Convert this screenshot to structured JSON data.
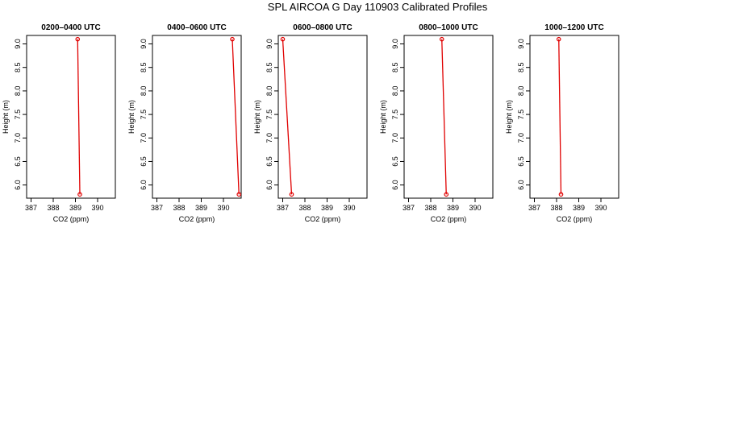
{
  "title": "SPL AIRCOA G  Day 110903  Calibrated Profiles",
  "colors": {
    "profile": "#e00000",
    "axis": "#000000"
  },
  "chart_data": [
    {
      "type": "line",
      "title": "0200–0400 UTC",
      "xlabel": "CO2 (ppm)",
      "ylabel": "Height (m)",
      "xlim": [
        386.8,
        390.8
      ],
      "ylim": [
        5.72,
        9.18
      ],
      "xticks": [
        "387",
        "388",
        "389",
        "390"
      ],
      "yticks": [
        "6.0",
        "6.5",
        "7.0",
        "7.5",
        "8.0",
        "8.5",
        "9.0"
      ],
      "grid": false,
      "series": [
        {
          "x": [
            389.1,
            389.2
          ],
          "y": [
            9.1,
            5.8
          ]
        }
      ]
    },
    {
      "type": "line",
      "title": "0400–0600 UTC",
      "xlabel": "CO2 (ppm)",
      "ylabel": "Height (m)",
      "xlim": [
        386.8,
        390.8
      ],
      "ylim": [
        5.72,
        9.18
      ],
      "xticks": [
        "387",
        "388",
        "389",
        "390"
      ],
      "yticks": [
        "6.0",
        "6.5",
        "7.0",
        "7.5",
        "8.0",
        "8.5",
        "9.0"
      ],
      "grid": false,
      "series": [
        {
          "x": [
            390.4,
            390.7
          ],
          "y": [
            9.1,
            5.8
          ]
        }
      ]
    },
    {
      "type": "line",
      "title": "0600–0800 UTC",
      "xlabel": "CO2 (ppm)",
      "ylabel": "Height (m)",
      "xlim": [
        386.8,
        390.8
      ],
      "ylim": [
        5.72,
        9.18
      ],
      "xticks": [
        "387",
        "388",
        "389",
        "390"
      ],
      "yticks": [
        "6.0",
        "6.5",
        "7.0",
        "7.5",
        "8.0",
        "8.5",
        "9.0"
      ],
      "grid": false,
      "series": [
        {
          "x": [
            387.0,
            387.4
          ],
          "y": [
            9.1,
            5.8
          ]
        }
      ]
    },
    {
      "type": "line",
      "title": "0800–1000 UTC",
      "xlabel": "CO2 (ppm)",
      "ylabel": "Height (m)",
      "xlim": [
        386.8,
        390.8
      ],
      "ylim": [
        5.72,
        9.18
      ],
      "xticks": [
        "387",
        "388",
        "389",
        "390"
      ],
      "yticks": [
        "6.0",
        "6.5",
        "7.0",
        "7.5",
        "8.0",
        "8.5",
        "9.0"
      ],
      "grid": false,
      "series": [
        {
          "x": [
            388.5,
            388.7
          ],
          "y": [
            9.1,
            5.8
          ]
        }
      ]
    },
    {
      "type": "line",
      "title": "1000–1200 UTC",
      "xlabel": "CO2 (ppm)",
      "ylabel": "Height (m)",
      "xlim": [
        386.8,
        390.8
      ],
      "ylim": [
        5.72,
        9.18
      ],
      "xticks": [
        "387",
        "388",
        "389",
        "390"
      ],
      "yticks": [
        "6.0",
        "6.5",
        "7.0",
        "7.5",
        "8.0",
        "8.5",
        "9.0"
      ],
      "grid": false,
      "series": [
        {
          "x": [
            388.1,
            388.2
          ],
          "y": [
            9.1,
            5.8
          ]
        }
      ]
    }
  ]
}
